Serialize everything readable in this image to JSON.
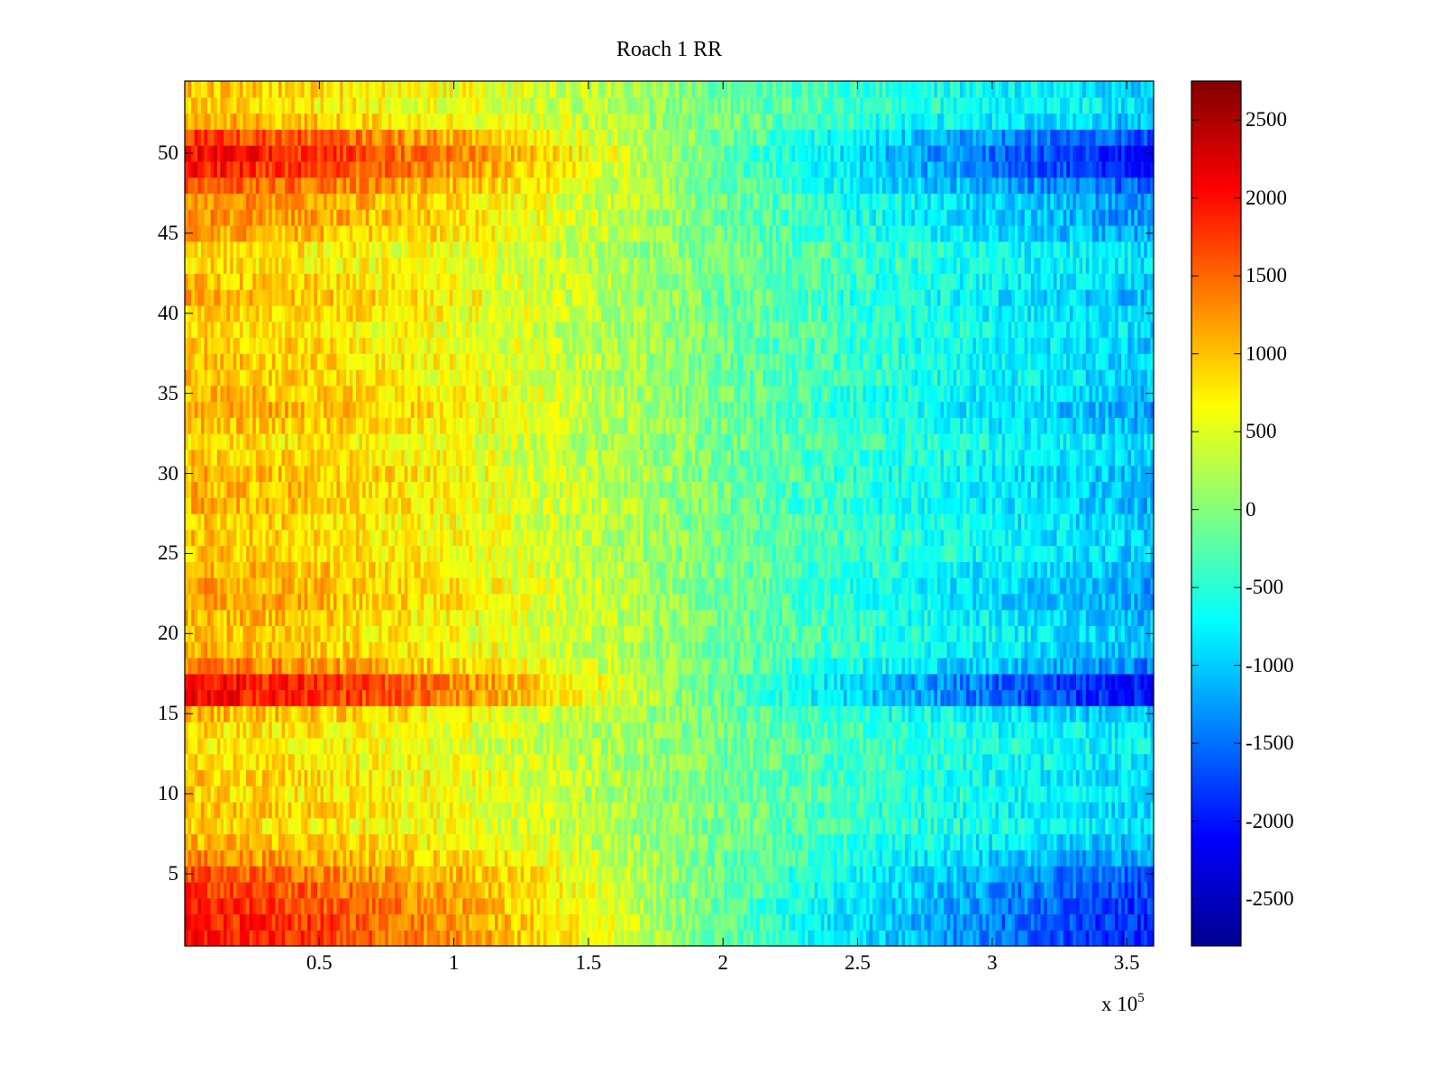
{
  "chart_data": {
    "type": "heatmap",
    "title": "Roach 1 RR",
    "xlabel": "",
    "ylabel": "",
    "x_range": [
      0,
      360000
    ],
    "y_range": [
      0.5,
      54.5
    ],
    "rows": 54,
    "x_ticks": [
      0.5,
      1,
      1.5,
      2,
      2.5,
      3,
      3.5
    ],
    "x_tick_labels": [
      "0.5",
      "1",
      "1.5",
      "2",
      "2.5",
      "3",
      "3.5"
    ],
    "x_exponent_label": "x 10",
    "x_exponent": "5",
    "y_ticks": [
      5,
      10,
      15,
      20,
      25,
      30,
      35,
      40,
      45,
      50
    ],
    "y_tick_labels": [
      "5",
      "10",
      "15",
      "20",
      "25",
      "30",
      "35",
      "40",
      "45",
      "50"
    ],
    "colormap": "jet",
    "clim": [
      -2800,
      2750
    ],
    "colorbar_ticks": [
      2500,
      2000,
      1500,
      1000,
      500,
      0,
      -500,
      -1000,
      -1500,
      -2000,
      -2500
    ],
    "colorbar_tick_labels": [
      "2500",
      "2000",
      "1500",
      "1000",
      "500",
      "0",
      "-500",
      "-1000",
      "-1500",
      "-2000",
      "-2500"
    ],
    "trend_profile": {
      "x": [
        0,
        50000,
        100000,
        150000,
        200000,
        250000,
        300000,
        360000
      ],
      "value_at_x": [
        1100,
        950,
        700,
        350,
        -100,
        -500,
        -800,
        -1100
      ]
    },
    "row_strength": [
      1.8,
      1.8,
      1.7,
      1.6,
      1.5,
      1.2,
      1.0,
      0.8,
      0.9,
      0.8,
      0.9,
      0.8,
      0.7,
      0.8,
      1.0,
      1.9,
      1.9,
      1.3,
      1.0,
      0.9,
      1.0,
      1.1,
      1.1,
      1.0,
      0.9,
      0.9,
      0.9,
      1.0,
      1.0,
      1.0,
      0.9,
      0.8,
      1.0,
      1.1,
      1.0,
      0.9,
      0.9,
      0.9,
      0.8,
      0.9,
      1.0,
      0.9,
      0.8,
      0.8,
      1.1,
      1.2,
      1.2,
      1.5,
      1.8,
      1.9,
      1.6,
      1.0,
      0.8,
      0.9
    ]
  }
}
